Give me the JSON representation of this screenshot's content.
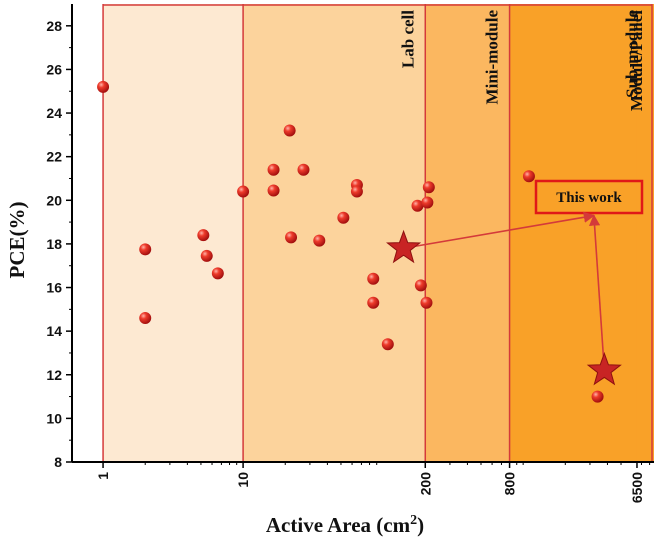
{
  "chart_data": {
    "type": "scatter",
    "xlabel": "Active Area (cm",
    "xlabel_sup": "2",
    "xlabel_close": ")",
    "ylabel": "PCE(%)",
    "xscale": "log",
    "xlim": [
      0.6,
      8600
    ],
    "ylim": [
      8,
      29
    ],
    "x_ticks": [
      {
        "value": 1,
        "label": "1"
      },
      {
        "value": 10,
        "label": "10"
      },
      {
        "value": 200,
        "label": "200"
      },
      {
        "value": 800,
        "label": "800"
      },
      {
        "value": 6500,
        "label": "6500"
      }
    ],
    "y_ticks": [
      8,
      10,
      12,
      14,
      16,
      18,
      20,
      22,
      24,
      26,
      28
    ],
    "regions": [
      {
        "label": "",
        "from": 1,
        "to": 10,
        "fill": "#fde9d2"
      },
      {
        "label": "Lab cell",
        "from": 10,
        "to": 200,
        "fill": "#fcd39c"
      },
      {
        "label": "Mini-module",
        "from": 200,
        "to": 800,
        "fill": "#fbb760"
      },
      {
        "label": "Sub-module",
        "from": 800,
        "to": 8000,
        "fill": "#f9a128"
      },
      {
        "label": "Module/Panel",
        "from": 6500,
        "to": 8600,
        "fill": "#f9a128"
      }
    ],
    "boundary_color": "#d43a3a",
    "points": [
      {
        "x": 1.0,
        "y": 25.2
      },
      {
        "x": 2.0,
        "y": 17.75
      },
      {
        "x": 2.0,
        "y": 14.6
      },
      {
        "x": 5.2,
        "y": 18.4
      },
      {
        "x": 5.5,
        "y": 17.45
      },
      {
        "x": 6.6,
        "y": 16.65
      },
      {
        "x": 10.0,
        "y": 20.4
      },
      {
        "x": 16.5,
        "y": 20.45
      },
      {
        "x": 16.5,
        "y": 21.4
      },
      {
        "x": 21.5,
        "y": 23.2
      },
      {
        "x": 22.0,
        "y": 18.3
      },
      {
        "x": 27.0,
        "y": 21.4
      },
      {
        "x": 35.0,
        "y": 18.15
      },
      {
        "x": 52.0,
        "y": 19.2
      },
      {
        "x": 65.0,
        "y": 20.7
      },
      {
        "x": 65.0,
        "y": 20.4
      },
      {
        "x": 85.0,
        "y": 16.4
      },
      {
        "x": 85.0,
        "y": 15.3
      },
      {
        "x": 108.0,
        "y": 13.4
      },
      {
        "x": 176.0,
        "y": 19.75
      },
      {
        "x": 186.0,
        "y": 16.1
      },
      {
        "x": 204.0,
        "y": 15.3
      },
      {
        "x": 212.0,
        "y": 20.6
      },
      {
        "x": 207.0,
        "y": 19.9
      },
      {
        "x": 1100.0,
        "y": 21.1
      },
      {
        "x": 3400.0,
        "y": 11.0
      }
    ],
    "this_work": [
      {
        "x": 140.0,
        "y": 17.8
      },
      {
        "x": 3800.0,
        "y": 12.2
      }
    ],
    "annotation": {
      "text": "This work",
      "anchor": {
        "x": 3200.0,
        "y": 19.3
      }
    },
    "colors": {
      "point": "#e02020",
      "star": "#c82424",
      "arrow": "#d43a3a",
      "frame": "#000000"
    }
  }
}
